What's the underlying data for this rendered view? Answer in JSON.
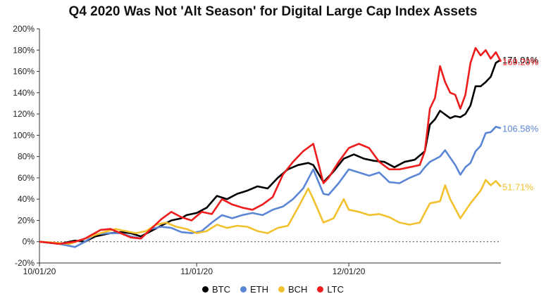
{
  "title": "Q4 2020 Was Not 'Alt Season' for Digital Large Cap Index Assets",
  "chart_data": {
    "type": "line",
    "title": "Q4 2020 Was Not 'Alt Season' for Digital Large Cap Index Assets",
    "xlabel": "",
    "ylabel": "",
    "x_range": [
      "2020-10-01",
      "2020-12-31"
    ],
    "ylim": [
      -20,
      200
    ],
    "y_ticks": [
      -20,
      0,
      20,
      40,
      60,
      80,
      100,
      120,
      140,
      160,
      180,
      200
    ],
    "y_tick_labels": [
      "-20%",
      "0%",
      "20%",
      "40%",
      "60%",
      "80%",
      "100%",
      "120%",
      "140%",
      "160%",
      "180%",
      "200%"
    ],
    "x_ticks": [
      "2020-10-01",
      "2020-11-01",
      "2020-12-01"
    ],
    "x_tick_labels": [
      "10/01/20",
      "11/01/20",
      "12/01/20"
    ],
    "zero_line": "dotted",
    "legend_position": "bottom",
    "series": [
      {
        "name": "BTC",
        "color": "#000000",
        "end_label": "171.01%",
        "points": [
          [
            "2020-10-01",
            0
          ],
          [
            "2020-10-05",
            -2
          ],
          [
            "2020-10-08",
            1
          ],
          [
            "2020-10-10",
            0
          ],
          [
            "2020-10-12",
            5
          ],
          [
            "2020-10-15",
            8
          ],
          [
            "2020-10-17",
            9
          ],
          [
            "2020-10-19",
            8
          ],
          [
            "2020-10-21",
            5
          ],
          [
            "2020-10-23",
            10
          ],
          [
            "2020-10-25",
            15
          ],
          [
            "2020-10-27",
            20
          ],
          [
            "2020-10-29",
            22
          ],
          [
            "2020-10-30",
            25
          ],
          [
            "2020-11-01",
            27
          ],
          [
            "2020-11-03",
            32
          ],
          [
            "2020-11-05",
            43
          ],
          [
            "2020-11-07",
            40
          ],
          [
            "2020-11-09",
            45
          ],
          [
            "2020-11-11",
            48
          ],
          [
            "2020-11-13",
            52
          ],
          [
            "2020-11-15",
            50
          ],
          [
            "2020-11-17",
            60
          ],
          [
            "2020-11-19",
            68
          ],
          [
            "2020-11-21",
            72
          ],
          [
            "2020-11-23",
            74
          ],
          [
            "2020-11-24",
            72
          ],
          [
            "2020-11-26",
            56
          ],
          [
            "2020-11-28",
            66
          ],
          [
            "2020-11-30",
            78
          ],
          [
            "2020-12-02",
            82
          ],
          [
            "2020-12-04",
            78
          ],
          [
            "2020-12-06",
            76
          ],
          [
            "2020-12-08",
            75
          ],
          [
            "2020-12-10",
            70
          ],
          [
            "2020-12-12",
            75
          ],
          [
            "2020-12-14",
            77
          ],
          [
            "2020-12-16",
            85
          ],
          [
            "2020-12-17",
            110
          ],
          [
            "2020-12-18",
            115
          ],
          [
            "2020-12-19",
            123
          ],
          [
            "2020-12-21",
            116
          ],
          [
            "2020-12-22",
            118
          ],
          [
            "2020-12-23",
            117
          ],
          [
            "2020-12-24",
            120
          ],
          [
            "2020-12-25",
            128
          ],
          [
            "2020-12-26",
            146
          ],
          [
            "2020-12-27",
            146
          ],
          [
            "2020-12-28",
            150
          ],
          [
            "2020-12-29",
            155
          ],
          [
            "2020-12-30",
            168
          ],
          [
            "2020-12-31",
            171.01
          ]
        ]
      },
      {
        "name": "ETH",
        "color": "#5b86d6",
        "end_label": "106.58%",
        "points": [
          [
            "2020-10-01",
            0
          ],
          [
            "2020-10-05",
            -2
          ],
          [
            "2020-10-08",
            -5
          ],
          [
            "2020-10-10",
            0
          ],
          [
            "2020-10-12",
            7
          ],
          [
            "2020-10-15",
            8
          ],
          [
            "2020-10-17",
            8
          ],
          [
            "2020-10-19",
            5
          ],
          [
            "2020-10-21",
            3
          ],
          [
            "2020-10-23",
            12
          ],
          [
            "2020-10-25",
            14
          ],
          [
            "2020-10-27",
            13
          ],
          [
            "2020-10-29",
            9
          ],
          [
            "2020-10-31",
            8
          ],
          [
            "2020-11-02",
            10
          ],
          [
            "2020-11-04",
            18
          ],
          [
            "2020-11-06",
            25
          ],
          [
            "2020-11-08",
            22
          ],
          [
            "2020-11-10",
            25
          ],
          [
            "2020-11-12",
            27
          ],
          [
            "2020-11-14",
            25
          ],
          [
            "2020-11-16",
            30
          ],
          [
            "2020-11-18",
            33
          ],
          [
            "2020-11-20",
            40
          ],
          [
            "2020-11-22",
            50
          ],
          [
            "2020-11-24",
            68
          ],
          [
            "2020-11-26",
            45
          ],
          [
            "2020-11-27",
            44
          ],
          [
            "2020-11-29",
            55
          ],
          [
            "2020-12-01",
            68
          ],
          [
            "2020-12-03",
            65
          ],
          [
            "2020-12-05",
            62
          ],
          [
            "2020-12-07",
            65
          ],
          [
            "2020-12-09",
            56
          ],
          [
            "2020-12-11",
            55
          ],
          [
            "2020-12-13",
            60
          ],
          [
            "2020-12-15",
            64
          ],
          [
            "2020-12-16",
            70
          ],
          [
            "2020-12-17",
            75
          ],
          [
            "2020-12-19",
            80
          ],
          [
            "2020-12-20",
            86
          ],
          [
            "2020-12-22",
            72
          ],
          [
            "2020-12-23",
            63
          ],
          [
            "2020-12-24",
            70
          ],
          [
            "2020-12-25",
            74
          ],
          [
            "2020-12-26",
            85
          ],
          [
            "2020-12-27",
            90
          ],
          [
            "2020-12-28",
            102
          ],
          [
            "2020-12-29",
            103
          ],
          [
            "2020-12-30",
            108
          ],
          [
            "2020-12-31",
            106.58
          ]
        ]
      },
      {
        "name": "BCH",
        "color": "#f2c12e",
        "end_label": "51.71%",
        "points": [
          [
            "2020-10-01",
            0
          ],
          [
            "2020-10-04",
            -1
          ],
          [
            "2020-10-07",
            -2
          ],
          [
            "2020-10-10",
            3
          ],
          [
            "2020-10-13",
            8
          ],
          [
            "2020-10-16",
            12
          ],
          [
            "2020-10-18",
            10
          ],
          [
            "2020-10-20",
            8
          ],
          [
            "2020-10-22",
            10
          ],
          [
            "2020-10-24",
            16
          ],
          [
            "2020-10-26",
            18
          ],
          [
            "2020-10-28",
            14
          ],
          [
            "2020-10-30",
            12
          ],
          [
            "2020-11-01",
            8
          ],
          [
            "2020-11-03",
            10
          ],
          [
            "2020-11-05",
            16
          ],
          [
            "2020-11-07",
            13
          ],
          [
            "2020-11-09",
            15
          ],
          [
            "2020-11-11",
            14
          ],
          [
            "2020-11-13",
            10
          ],
          [
            "2020-11-15",
            8
          ],
          [
            "2020-11-17",
            13
          ],
          [
            "2020-11-19",
            15
          ],
          [
            "2020-11-21",
            32
          ],
          [
            "2020-11-23",
            50
          ],
          [
            "2020-11-24",
            40
          ],
          [
            "2020-11-26",
            18
          ],
          [
            "2020-11-28",
            22
          ],
          [
            "2020-11-30",
            40
          ],
          [
            "2020-12-01",
            30
          ],
          [
            "2020-12-03",
            28
          ],
          [
            "2020-12-05",
            25
          ],
          [
            "2020-12-07",
            26
          ],
          [
            "2020-12-09",
            23
          ],
          [
            "2020-12-11",
            18
          ],
          [
            "2020-12-13",
            16
          ],
          [
            "2020-12-15",
            18
          ],
          [
            "2020-12-17",
            36
          ],
          [
            "2020-12-19",
            38
          ],
          [
            "2020-12-20",
            53
          ],
          [
            "2020-12-21",
            40
          ],
          [
            "2020-12-23",
            22
          ],
          [
            "2020-12-25",
            36
          ],
          [
            "2020-12-27",
            48
          ],
          [
            "2020-12-28",
            58
          ],
          [
            "2020-12-29",
            53
          ],
          [
            "2020-12-30",
            57
          ],
          [
            "2020-12-31",
            51.71
          ]
        ]
      },
      {
        "name": "LTC",
        "color": "#ee1c1c",
        "end_label": "169.20%",
        "points": [
          [
            "2020-10-01",
            0
          ],
          [
            "2020-10-05",
            -2
          ],
          [
            "2020-10-08",
            0
          ],
          [
            "2020-10-10",
            3
          ],
          [
            "2020-10-13",
            11
          ],
          [
            "2020-10-15",
            12
          ],
          [
            "2020-10-17",
            8
          ],
          [
            "2020-10-19",
            4
          ],
          [
            "2020-10-21",
            3
          ],
          [
            "2020-10-23",
            12
          ],
          [
            "2020-10-25",
            21
          ],
          [
            "2020-10-27",
            28
          ],
          [
            "2020-10-29",
            23
          ],
          [
            "2020-10-31",
            20
          ],
          [
            "2020-11-02",
            28
          ],
          [
            "2020-11-04",
            26
          ],
          [
            "2020-11-06",
            40
          ],
          [
            "2020-11-08",
            35
          ],
          [
            "2020-11-10",
            32
          ],
          [
            "2020-11-12",
            30
          ],
          [
            "2020-11-14",
            35
          ],
          [
            "2020-11-16",
            42
          ],
          [
            "2020-11-18",
            63
          ],
          [
            "2020-11-20",
            75
          ],
          [
            "2020-11-22",
            85
          ],
          [
            "2020-11-24",
            92
          ],
          [
            "2020-11-26",
            55
          ],
          [
            "2020-11-27",
            60
          ],
          [
            "2020-11-29",
            75
          ],
          [
            "2020-12-01",
            88
          ],
          [
            "2020-12-03",
            92
          ],
          [
            "2020-12-05",
            88
          ],
          [
            "2020-12-07",
            75
          ],
          [
            "2020-12-09",
            68
          ],
          [
            "2020-12-11",
            68
          ],
          [
            "2020-12-13",
            70
          ],
          [
            "2020-12-15",
            72
          ],
          [
            "2020-12-16",
            85
          ],
          [
            "2020-12-17",
            125
          ],
          [
            "2020-12-18",
            135
          ],
          [
            "2020-12-19",
            165
          ],
          [
            "2020-12-20",
            150
          ],
          [
            "2020-12-21",
            140
          ],
          [
            "2020-12-22",
            138
          ],
          [
            "2020-12-23",
            125
          ],
          [
            "2020-12-24",
            138
          ],
          [
            "2020-12-25",
            168
          ],
          [
            "2020-12-26",
            182
          ],
          [
            "2020-12-27",
            175
          ],
          [
            "2020-12-28",
            180
          ],
          [
            "2020-12-29",
            172
          ],
          [
            "2020-12-30",
            178
          ],
          [
            "2020-12-31",
            169.2
          ]
        ]
      }
    ]
  }
}
